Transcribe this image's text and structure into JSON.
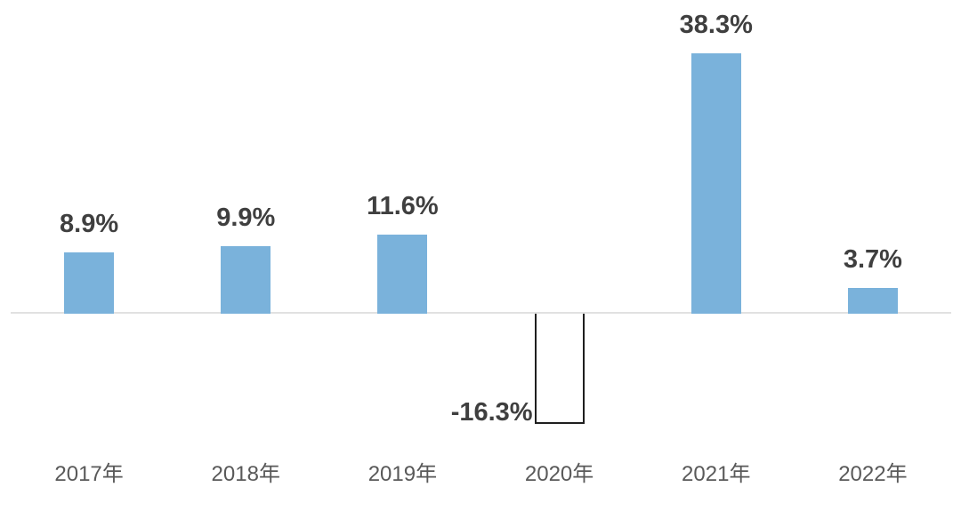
{
  "chart_data": {
    "type": "bar",
    "title": "",
    "xlabel": "",
    "ylabel": "",
    "categories": [
      "2017年",
      "2018年",
      "2019年",
      "2020年",
      "2021年",
      "2022年"
    ],
    "values": [
      8.9,
      9.9,
      11.6,
      -16.3,
      38.3,
      3.7
    ],
    "value_labels": [
      "8.9%",
      "9.9%",
      "11.6%",
      "-16.3%",
      "38.3%",
      "3.7%"
    ],
    "series_name": "",
    "legend": false,
    "grid": false,
    "zero_line": true,
    "ylim": [
      -20,
      40
    ],
    "colors": {
      "bar_fill": "#7AB2DB",
      "negative_bar_fill": "#FFFFFF",
      "negative_bar_border": "#1F1F1F",
      "axis_line": "#E1E1E1",
      "value_label": "#3F3F3F",
      "category_label": "#595959"
    }
  }
}
